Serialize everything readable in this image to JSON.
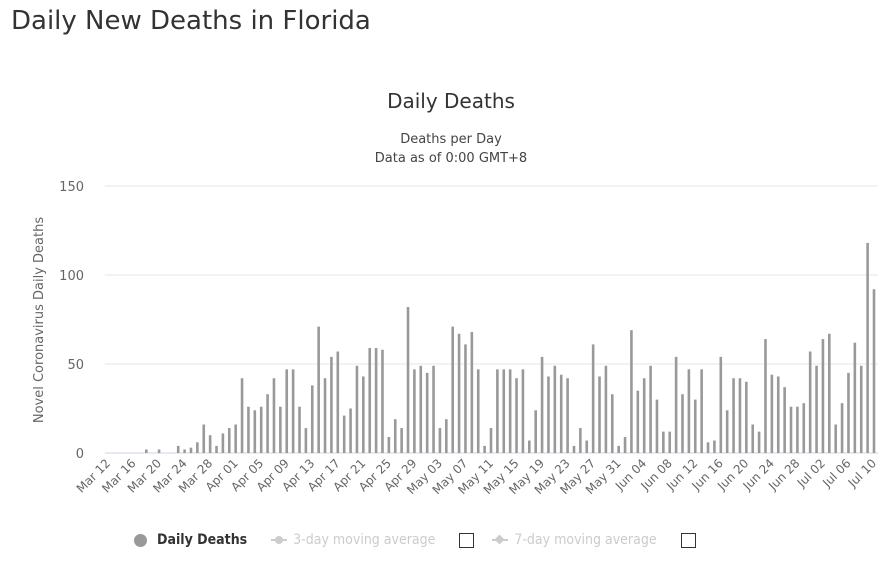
{
  "page_title": "Daily New Deaths in Florida",
  "chart_data": {
    "type": "bar",
    "title": "Daily Deaths",
    "subtitle": [
      "Deaths per Day",
      "Data as of 0:00 GMT+8"
    ],
    "xlabel": "",
    "ylabel": "Novel Coronavirus Daily Deaths",
    "ylim": [
      0,
      150
    ],
    "yticks": [
      0,
      50,
      100,
      150
    ],
    "grid": true,
    "bar_color": "#999999",
    "legend_position": "bottom",
    "categories": [
      "Mar 12",
      "Mar 13",
      "Mar 14",
      "Mar 15",
      "Mar 16",
      "Mar 17",
      "Mar 18",
      "Mar 19",
      "Mar 20",
      "Mar 21",
      "Mar 22",
      "Mar 23",
      "Mar 24",
      "Mar 25",
      "Mar 26",
      "Mar 27",
      "Mar 28",
      "Mar 29",
      "Mar 30",
      "Mar 31",
      "Apr 01",
      "Apr 02",
      "Apr 03",
      "Apr 04",
      "Apr 05",
      "Apr 06",
      "Apr 07",
      "Apr 08",
      "Apr 09",
      "Apr 10",
      "Apr 11",
      "Apr 12",
      "Apr 13",
      "Apr 14",
      "Apr 15",
      "Apr 16",
      "Apr 17",
      "Apr 18",
      "Apr 19",
      "Apr 20",
      "Apr 21",
      "Apr 22",
      "Apr 23",
      "Apr 24",
      "Apr 25",
      "Apr 26",
      "Apr 27",
      "Apr 28",
      "Apr 29",
      "Apr 30",
      "May 01",
      "May 02",
      "May 03",
      "May 04",
      "May 05",
      "May 06",
      "May 07",
      "May 08",
      "May 09",
      "May 10",
      "May 11",
      "May 12",
      "May 13",
      "May 14",
      "May 15",
      "May 16",
      "May 17",
      "May 18",
      "May 19",
      "May 20",
      "May 21",
      "May 22",
      "May 23",
      "May 24",
      "May 25",
      "May 26",
      "May 27",
      "May 28",
      "May 29",
      "May 30",
      "May 31",
      "Jun 01",
      "Jun 02",
      "Jun 03",
      "Jun 04",
      "Jun 05",
      "Jun 06",
      "Jun 07",
      "Jun 08",
      "Jun 09",
      "Jun 10",
      "Jun 11",
      "Jun 12",
      "Jun 13",
      "Jun 14",
      "Jun 15",
      "Jun 16",
      "Jun 17",
      "Jun 18",
      "Jun 19",
      "Jun 20",
      "Jun 21",
      "Jun 22",
      "Jun 23",
      "Jun 24",
      "Jun 25",
      "Jun 26",
      "Jun 27",
      "Jun 28",
      "Jun 29",
      "Jun 30",
      "Jul 01",
      "Jul 02",
      "Jul 03",
      "Jul 04",
      "Jul 05",
      "Jul 06",
      "Jul 07",
      "Jul 08",
      "Jul 09",
      "Jul 10"
    ],
    "series": [
      {
        "name": "Daily Deaths",
        "visible": true,
        "values": [
          0,
          0,
          0,
          0,
          0,
          0,
          2,
          0,
          2,
          0,
          0,
          4,
          2,
          3,
          6,
          16,
          10,
          4,
          11,
          14,
          16,
          42,
          26,
          24,
          26,
          33,
          42,
          26,
          47,
          47,
          26,
          14,
          38,
          71,
          42,
          54,
          57,
          21,
          25,
          49,
          43,
          59,
          59,
          58,
          9,
          19,
          14,
          82,
          47,
          49,
          45,
          49,
          14,
          19,
          71,
          67,
          61,
          68,
          47,
          4,
          14,
          47,
          47,
          47,
          42,
          47,
          7,
          24,
          54,
          43,
          49,
          44,
          42,
          4,
          14,
          7,
          61,
          43,
          49,
          33,
          4,
          9,
          69,
          35,
          42,
          49,
          30,
          12,
          12,
          54,
          33,
          47,
          30,
          47,
          6,
          7,
          54,
          24,
          42,
          42,
          40,
          16,
          12,
          64,
          44,
          43,
          37,
          26,
          26,
          28,
          57,
          49,
          64,
          67,
          16,
          28,
          45,
          62,
          49,
          118,
          92
        ]
      },
      {
        "name": "3-day moving average",
        "visible": false
      },
      {
        "name": "7-day moving average",
        "visible": false
      }
    ]
  }
}
